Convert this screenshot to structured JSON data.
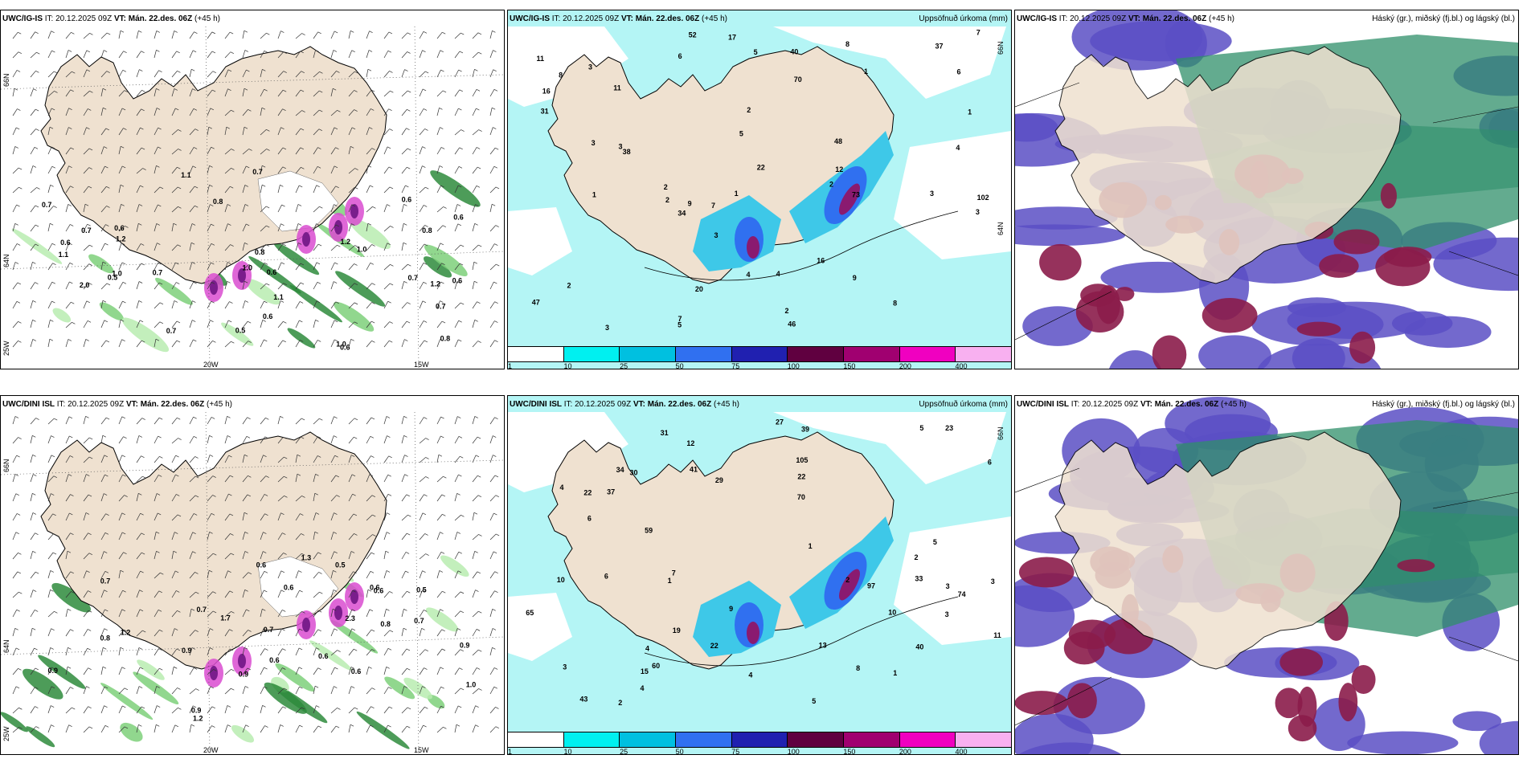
{
  "colors": {
    "land": "#efe1d0",
    "sea_precip": "#b4f5f5",
    "wind_green": "#2e8b3c",
    "pink": "#d94cd0",
    "cloud_high": "#2f8f6a",
    "cloud_mid": "#5b4fc4",
    "cloud_low": "#8b1c4a"
  },
  "panels": [
    {
      "id": "ig-wind",
      "model": "UWC/IG-IS",
      "it_label": "IT:",
      "it_value": "20.12.2025 09Z",
      "vt_label": "VT:",
      "vt_value": "Mán. 22.des. 06Z",
      "lead": "(+45 h)",
      "right_title": "",
      "lat_labels": [
        "66N",
        "64N"
      ],
      "lon_labels": [
        "25W",
        "20W",
        "15W"
      ],
      "values": [
        "0.7",
        "0.7",
        "0.6",
        "0.8",
        "0.8",
        "1.0",
        "0.6",
        "1.0",
        "0.6",
        "0.5",
        "0.7",
        "1.2",
        "1.0",
        "0.6",
        "0.6",
        "0.7",
        "2.0",
        "1.1",
        "0.8",
        "0.6",
        "1.0",
        "0.8",
        "1.2",
        "0.7",
        "0.6",
        "0.6",
        "1.1",
        "0.7",
        "1.1",
        "0.5",
        "1.2",
        "0.7"
      ]
    },
    {
      "id": "ig-precip",
      "model": "UWC/IG-IS",
      "it_label": "IT:",
      "it_value": "20.12.2025 09Z",
      "vt_label": "VT:",
      "vt_value": "Mán. 22.des. 06Z",
      "lead": "(+45 h)",
      "right_title": "Uppsöfnuð úrkoma (mm)",
      "lat_labels": [
        "66N",
        "64N"
      ],
      "lon_labels": [],
      "values": [
        "3",
        "2",
        "3",
        "2",
        "1",
        "2",
        "3",
        "2",
        "1",
        "4",
        "4",
        "3",
        "3",
        "16",
        "38",
        "48",
        "37",
        "22",
        "52",
        "46",
        "34",
        "20",
        "47",
        "16",
        "31",
        "70",
        "102",
        "73",
        "40",
        "17",
        "8",
        "7",
        "8",
        "6",
        "11",
        "9",
        "7",
        "5",
        "5",
        "6",
        "2",
        "1",
        "4",
        "1",
        "2",
        "3",
        "5",
        "7",
        "8",
        "9",
        "11",
        "12",
        "3"
      ],
      "legend_ticks": [
        "1",
        "10",
        "25",
        "50",
        "75",
        "100",
        "150",
        "200",
        "400"
      ]
    },
    {
      "id": "ig-cloud",
      "model": "UWC/IG-IS",
      "it_label": "IT:",
      "it_value": "20.12.2025 09Z",
      "vt_label": "VT:",
      "vt_value": "Mán. 22.des. 06Z",
      "lead": "(+45 h)",
      "right_title": "Háský (gr.), miðský (fj.bl.) og lágský (bl.)",
      "lat_labels": [],
      "lon_labels": [],
      "values": []
    },
    {
      "id": "dini-wind",
      "model": "UWC/DINI ISL",
      "it_label": "IT:",
      "it_value": "20.12.2025 09Z",
      "vt_label": "VT:",
      "vt_value": "Mán. 22.des. 06Z",
      "lead": "(+45 h)",
      "right_title": "",
      "lat_labels": [
        "66N",
        "64N"
      ],
      "lon_labels": [
        "25W",
        "20W",
        "15W"
      ],
      "values": [
        "0.9",
        "0.8",
        "0.5",
        "1.3",
        "0.6",
        "0.9",
        "0.6",
        "0.7",
        "0.6",
        "0.8",
        "0.7",
        "0.9",
        "1.2",
        "1.7",
        "0.6",
        "2.3",
        "0.9",
        "0.6",
        "0.7",
        "0.6",
        "1.0",
        "0.9",
        "1.2",
        "0.7",
        "0.5",
        "0.6"
      ]
    },
    {
      "id": "dini-precip",
      "model": "UWC/DINI ISL",
      "it_label": "IT:",
      "it_value": "20.12.2025 09Z",
      "vt_label": "VT:",
      "vt_value": "Mán. 22.des. 06Z",
      "lead": "(+45 h)",
      "right_title": "Uppsöfnuð úrkoma (mm)",
      "lat_labels": [
        "66N"
      ],
      "lon_labels": [],
      "values": [
        "2",
        "1",
        "3",
        "2",
        "1",
        "4",
        "3",
        "10",
        "6",
        "4",
        "12",
        "29",
        "39",
        "41",
        "30",
        "59",
        "22",
        "74",
        "70",
        "65",
        "40",
        "23",
        "19",
        "31",
        "27",
        "22",
        "13",
        "33",
        "105",
        "37",
        "43",
        "34",
        "60",
        "97",
        "22",
        "15",
        "11",
        "10",
        "9",
        "4",
        "3",
        "6",
        "5",
        "2",
        "1",
        "3",
        "4",
        "5",
        "7",
        "8",
        "6",
        "5"
      ],
      "legend_ticks": [
        "1",
        "10",
        "25",
        "50",
        "75",
        "100",
        "150",
        "200",
        "400"
      ]
    },
    {
      "id": "dini-cloud",
      "model": "UWC/DINI ISL",
      "it_label": "IT:",
      "it_value": "20.12.2025 09Z",
      "vt_label": "VT:",
      "vt_value": "Mán. 22.des. 06Z",
      "lead": "(+45 h)",
      "right_title": "Háský (gr.), miðský (fj.bl.) og lágský (bl.)",
      "lat_labels": [],
      "lon_labels": [],
      "values": []
    }
  ],
  "legend_colors": [
    "#ffffff",
    "#00f0f0",
    "#00c0e0",
    "#3070f0",
    "#2020b0",
    "#600040",
    "#a00070",
    "#f000c0",
    "#f8b0f0"
  ]
}
